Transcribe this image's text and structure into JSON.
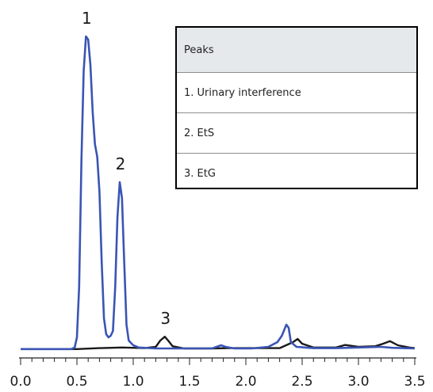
{
  "chart_data": {
    "type": "line",
    "title": "",
    "xlabel": "",
    "ylabel": "",
    "xlim": [
      0.0,
      3.5
    ],
    "ylim": [
      0,
      100
    ],
    "x_ticks": [
      "0.0",
      "0.5",
      "1.0",
      "1.5",
      "2.0",
      "2.5",
      "3.0",
      "3.5"
    ],
    "x_tick_values": [
      0.0,
      0.5,
      1.0,
      1.5,
      2.0,
      2.5,
      3.0,
      3.5
    ],
    "grid": false,
    "series": [
      {
        "color": "#3a55b4",
        "points": [
          [
            0,
            0.3
          ],
          [
            0.45,
            0.3
          ],
          [
            0.48,
            0.8
          ],
          [
            0.5,
            4
          ],
          [
            0.52,
            20
          ],
          [
            0.54,
            60
          ],
          [
            0.56,
            88
          ],
          [
            0.58,
            99
          ],
          [
            0.6,
            98
          ],
          [
            0.62,
            90
          ],
          [
            0.64,
            75
          ],
          [
            0.66,
            65
          ],
          [
            0.68,
            61
          ],
          [
            0.7,
            50
          ],
          [
            0.72,
            28
          ],
          [
            0.74,
            10
          ],
          [
            0.76,
            5
          ],
          [
            0.78,
            4
          ],
          [
            0.8,
            4.5
          ],
          [
            0.82,
            6
          ],
          [
            0.84,
            20
          ],
          [
            0.86,
            42
          ],
          [
            0.88,
            53
          ],
          [
            0.9,
            48
          ],
          [
            0.92,
            28
          ],
          [
            0.94,
            8
          ],
          [
            0.96,
            3
          ],
          [
            1.0,
            1.5
          ],
          [
            1.05,
            0.8
          ],
          [
            1.2,
            0.5
          ],
          [
            1.5,
            0.5
          ],
          [
            1.7,
            0.5
          ],
          [
            1.78,
            1.5
          ],
          [
            1.82,
            1
          ],
          [
            1.9,
            0.5
          ],
          [
            2.05,
            0.5
          ],
          [
            2.2,
            1
          ],
          [
            2.28,
            2.5
          ],
          [
            2.32,
            4.5
          ],
          [
            2.36,
            8
          ],
          [
            2.38,
            7
          ],
          [
            2.4,
            2.5
          ],
          [
            2.45,
            1
          ],
          [
            2.6,
            0.6
          ],
          [
            2.8,
            0.6
          ],
          [
            3.0,
            0.8
          ],
          [
            3.2,
            1
          ],
          [
            3.3,
            0.7
          ],
          [
            3.5,
            0.5
          ]
        ]
      },
      {
        "color": "#1a1a1a",
        "points": [
          [
            0,
            0.3
          ],
          [
            0.5,
            0.3
          ],
          [
            0.7,
            0.6
          ],
          [
            0.9,
            0.8
          ],
          [
            1.1,
            0.6
          ],
          [
            1.2,
            1
          ],
          [
            1.24,
            3
          ],
          [
            1.28,
            4.2
          ],
          [
            1.31,
            3
          ],
          [
            1.35,
            1.2
          ],
          [
            1.45,
            0.5
          ],
          [
            1.7,
            0.5
          ],
          [
            1.85,
            0.6
          ],
          [
            2.0,
            0.6
          ],
          [
            2.3,
            0.6
          ],
          [
            2.42,
            2.5
          ],
          [
            2.46,
            3.5
          ],
          [
            2.5,
            2
          ],
          [
            2.6,
            0.8
          ],
          [
            2.8,
            0.8
          ],
          [
            2.88,
            1.6
          ],
          [
            3.0,
            1
          ],
          [
            3.15,
            1.2
          ],
          [
            3.22,
            2
          ],
          [
            3.28,
            2.8
          ],
          [
            3.35,
            1.5
          ],
          [
            3.45,
            0.8
          ],
          [
            3.5,
            0.6
          ]
        ]
      }
    ],
    "annotations": [
      {
        "text": "1",
        "x": 0.58,
        "y": 99
      },
      {
        "text": "2",
        "x": 0.88,
        "y": 53
      },
      {
        "text": "3",
        "x": 1.28,
        "y": 4.2
      }
    ]
  },
  "legend": {
    "title": "Peaks",
    "items": [
      "1. Urinary interference",
      "2. EtS",
      "3. EtG"
    ]
  }
}
